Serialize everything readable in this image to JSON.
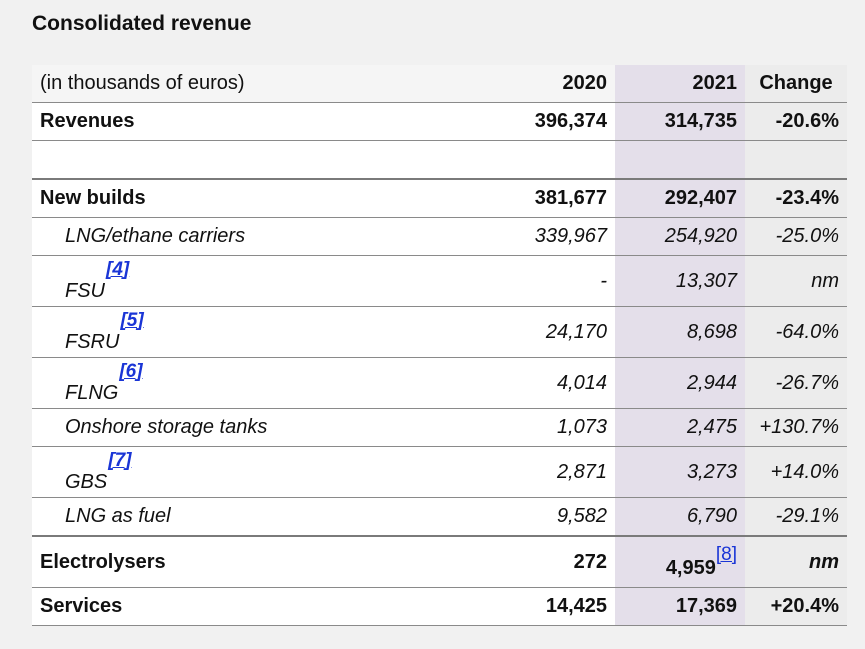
{
  "title": "Consolidated revenue",
  "header": {
    "label": "(in thousands of euros)",
    "y2020": "2020",
    "y2021": "2021",
    "change": "Change"
  },
  "rows": {
    "revenues": {
      "label": "Revenues",
      "y2020": "396,374",
      "y2021": "314,735",
      "change": "-20.6%"
    },
    "new_builds": {
      "label": "New builds",
      "y2020": "381,677",
      "y2021": "292,407",
      "change": "-23.4%"
    },
    "lng_ethane": {
      "label": "LNG/ethane carriers",
      "y2020": "339,967",
      "y2021": "254,920",
      "change": "-25.0%"
    },
    "fsu": {
      "label": "FSU",
      "footnote": "[4]",
      "y2020": "-",
      "y2021": "13,307",
      "change": "nm"
    },
    "fsru": {
      "label": "FSRU",
      "footnote": "[5]",
      "y2020": "24,170",
      "y2021": "8,698",
      "change": "-64.0%"
    },
    "flng": {
      "label": "FLNG",
      "footnote": "[6]",
      "y2020": "4,014",
      "y2021": "2,944",
      "change": "-26.7%"
    },
    "onshore": {
      "label": "Onshore storage tanks",
      "y2020": "1,073",
      "y2021": "2,475",
      "change": "+130.7%"
    },
    "gbs": {
      "label": "GBS",
      "footnote": "[7]",
      "y2020": "2,871",
      "y2021": "3,273",
      "change": "+14.0%"
    },
    "lng_fuel": {
      "label": "LNG as fuel",
      "y2020": "9,582",
      "y2021": "6,790",
      "change": "-29.1%"
    },
    "electrolysers": {
      "label": "Electrolysers",
      "y2020": "272",
      "y2021": "4,959",
      "y2021_footnote": "[8]",
      "change": "nm"
    },
    "services": {
      "label": "Services",
      "y2020": "14,425",
      "y2021": "17,369",
      "change": "+20.4%"
    }
  },
  "colors": {
    "col2021_bg": "#e4dfea",
    "change_bg": "#ececec",
    "footnote_link": "#1a35d6"
  }
}
